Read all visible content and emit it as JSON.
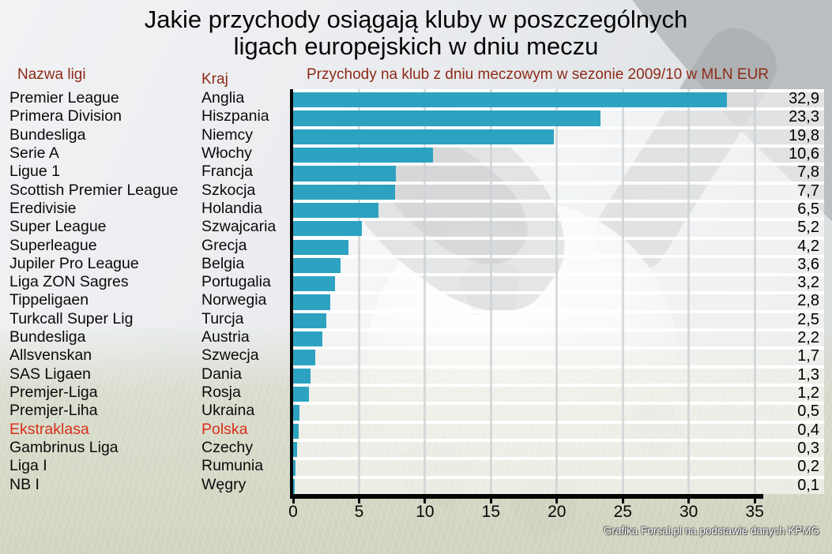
{
  "title": {
    "line1": "Jakie przychody osiągają kluby w poszczególnych",
    "line2": "ligach europejskich w dniu meczu"
  },
  "columns": {
    "league": "Nazwa ligi",
    "country": "Kraj",
    "chart": "Przychody na klub z dniu meczowym w sezonie 2009/10 w MLN EUR"
  },
  "credit": "Grafika Forsal.pl na podstawie danych KPMG",
  "colors": {
    "bar": "#249fbe",
    "header_red": "#8e2a17",
    "highlight_red": "#d8301c",
    "axis": "#050505"
  },
  "chart_data": {
    "type": "bar",
    "orientation": "horizontal",
    "title": "Przychody na klub z dniu meczowym w sezonie 2009/10 w MLN EUR",
    "categories": [
      "Premier League",
      "Primera Division",
      "Bundesliga",
      "Serie A",
      "Ligue 1",
      "Scottish Premier League",
      "Eredivisie",
      "Super League",
      "Superleague",
      "Jupiler Pro League",
      "Liga ZON Sagres",
      "Tippeligaen",
      "Turkcall Super Lig",
      "Bundesliga",
      "Allsvenskan",
      "SAS Ligaen",
      "Premjer-Liga",
      "Premjer-Liha",
      "Ekstraklasa",
      "Gambrinus Liga",
      "Liga I",
      "NB I"
    ],
    "countries": [
      "Anglia",
      "Hiszpania",
      "Niemcy",
      "Włochy",
      "Francja",
      "Szkocja",
      "Holandia",
      "Szwajcaria",
      "Grecja",
      "Belgia",
      "Portugalia",
      "Norwegia",
      "Turcja",
      "Austria",
      "Szwecja",
      "Dania",
      "Rosja",
      "Ukraina",
      "Polska",
      "Czechy",
      "Rumunia",
      "Węgry"
    ],
    "values": [
      32.9,
      23.3,
      19.8,
      10.6,
      7.8,
      7.7,
      6.5,
      5.2,
      4.2,
      3.6,
      3.2,
      2.8,
      2.5,
      2.2,
      1.7,
      1.3,
      1.2,
      0.5,
      0.4,
      0.3,
      0.2,
      0.1
    ],
    "value_labels": [
      "32,9",
      "23,3",
      "19,8",
      "10,6",
      "7,8",
      "7,7",
      "6,5",
      "5,2",
      "4,2",
      "3,6",
      "3,2",
      "2,8",
      "2,5",
      "2,2",
      "1,7",
      "1,3",
      "1,2",
      "0,5",
      "0,4",
      "0,3",
      "0,2",
      "0,1"
    ],
    "xlim": [
      0,
      35
    ],
    "xticks": [
      0,
      5,
      10,
      15,
      20,
      25,
      30,
      35
    ],
    "grid": "vertical gridlines every 5",
    "legend": "none",
    "highlight_index": 18
  }
}
